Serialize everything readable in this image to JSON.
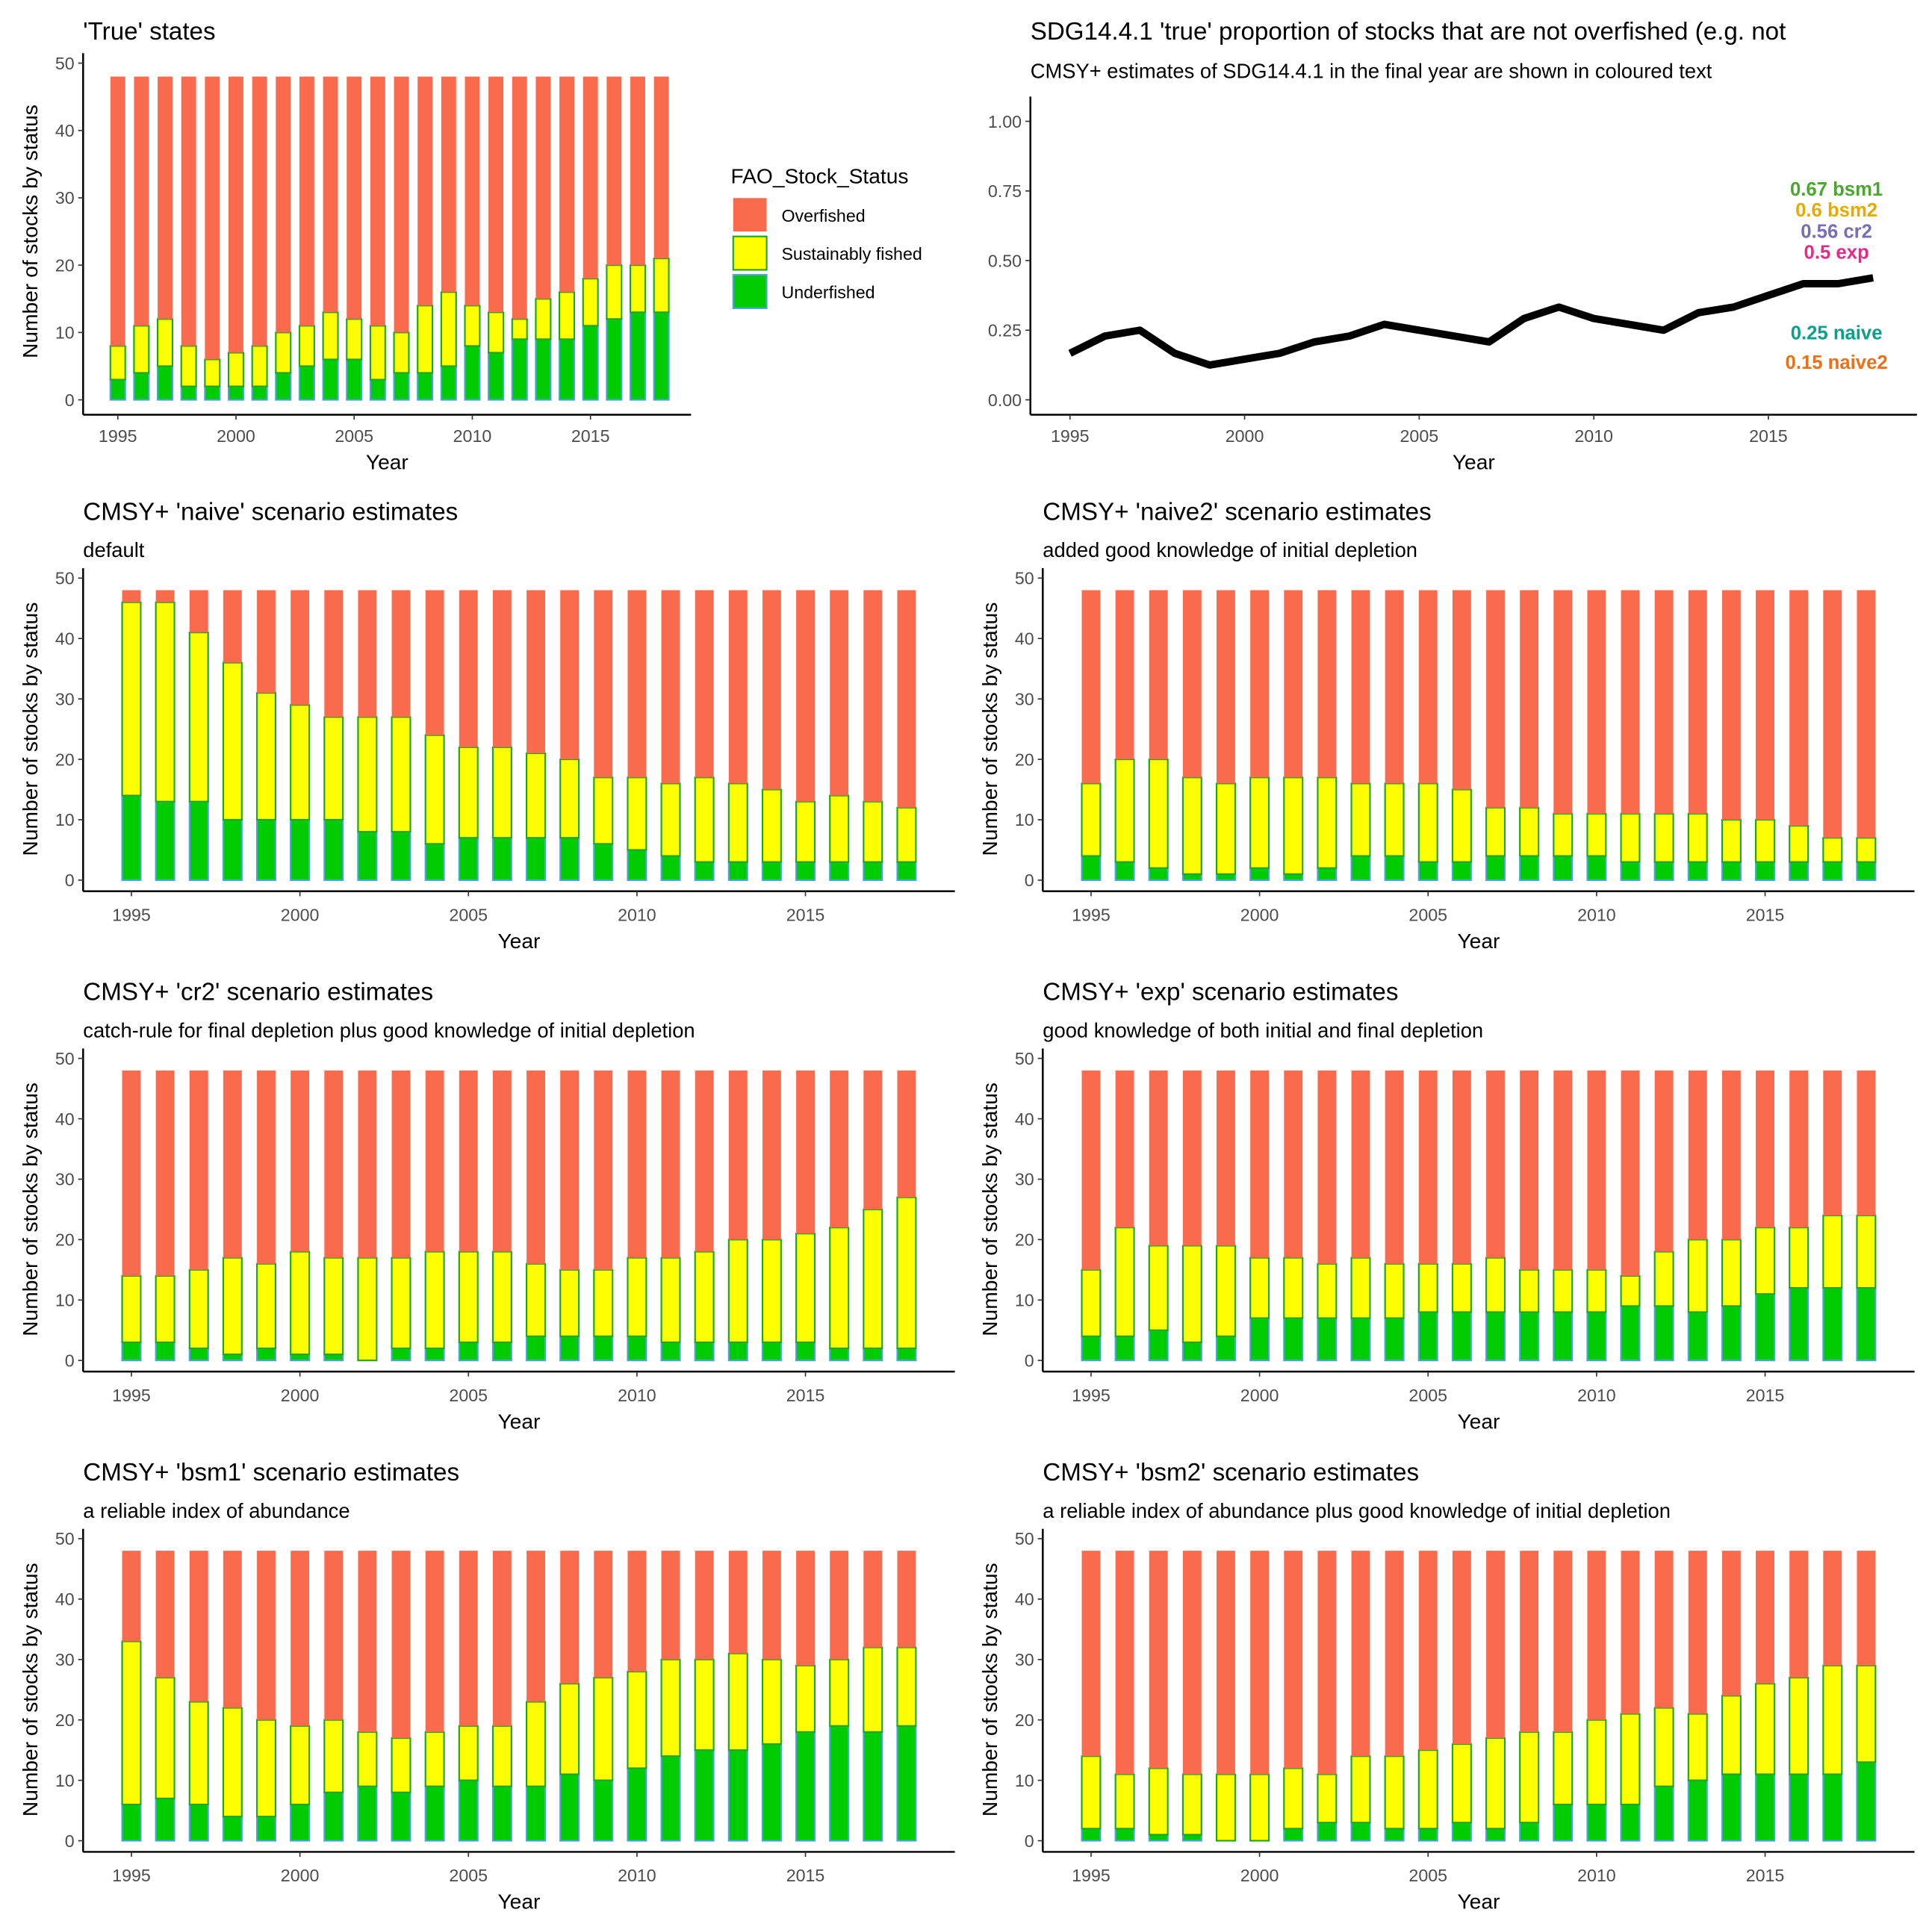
{
  "colors": {
    "Overfished": "#fa6a4d",
    "Sustainably fished": "#ffff00",
    "Underfished": "#00cc00",
    "sust_outline": "#1fa51f",
    "under_outline": "#4ba3e0"
  },
  "legend": {
    "title": "FAO_Stock_Status",
    "items": [
      "Overfished",
      "Sustainably fished",
      "Underfished"
    ]
  },
  "chart_data": [
    {
      "type": "bar",
      "stacked": true,
      "title": "'True' states",
      "subtitle": "",
      "xlabel": "Year",
      "ylabel": "Number of stocks by status",
      "ylim": [
        0,
        50
      ],
      "yticks": [
        "0",
        "10",
        "20",
        "30",
        "40",
        "50"
      ],
      "xticks": [
        "1995",
        "2000",
        "2005",
        "2010",
        "2015"
      ],
      "legend": "right",
      "categories": [
        1995,
        1996,
        1997,
        1998,
        1999,
        2000,
        2001,
        2002,
        2003,
        2004,
        2005,
        2006,
        2007,
        2008,
        2009,
        2010,
        2011,
        2012,
        2013,
        2014,
        2015,
        2016,
        2017,
        2018
      ],
      "series": [
        {
          "name": "Underfished",
          "values": [
            3,
            4,
            5,
            2,
            2,
            2,
            2,
            4,
            5,
            6,
            6,
            3,
            4,
            4,
            5,
            8,
            7,
            9,
            9,
            9,
            11,
            12,
            13,
            13
          ]
        },
        {
          "name": "Sustainably fished",
          "values": [
            5,
            7,
            7,
            6,
            4,
            5,
            6,
            6,
            6,
            7,
            6,
            8,
            6,
            10,
            11,
            6,
            6,
            3,
            6,
            7,
            7,
            8,
            7,
            8
          ]
        },
        {
          "name": "Overfished",
          "values": [
            40,
            37,
            36,
            40,
            42,
            41,
            40,
            38,
            37,
            35,
            36,
            37,
            38,
            34,
            32,
            34,
            35,
            36,
            33,
            32,
            30,
            28,
            28,
            27
          ]
        }
      ]
    },
    {
      "type": "line",
      "title": "SDG14.4.1 'true' proportion of stocks that are not overfished (e.g. not",
      "subtitle": "CMSY+ estimates of SDG14.4.1 in the final year are shown in coloured text",
      "xlabel": "Year",
      "ylabel": "",
      "ylim": [
        0,
        1
      ],
      "yticks": [
        "0.00",
        "0.25",
        "0.50",
        "0.75",
        "1.00"
      ],
      "xticks": [
        "1995",
        "2000",
        "2005",
        "2010",
        "2015"
      ],
      "x": [
        1995,
        1996,
        1997,
        1998,
        1999,
        2000,
        2001,
        2002,
        2003,
        2004,
        2005,
        2006,
        2007,
        2008,
        2009,
        2010,
        2011,
        2012,
        2013,
        2014,
        2015,
        2016,
        2017,
        2018
      ],
      "y": [
        0.167,
        0.229,
        0.25,
        0.167,
        0.125,
        0.146,
        0.167,
        0.208,
        0.229,
        0.271,
        0.25,
        0.229,
        0.208,
        0.292,
        0.333,
        0.292,
        0.271,
        0.25,
        0.313,
        0.333,
        0.375,
        0.417,
        0.417,
        0.438
      ],
      "annotations": [
        {
          "text": "0.67 bsm1",
          "value": 0.67,
          "color": "#4da532"
        },
        {
          "text": "0.6 bsm2",
          "value": 0.6,
          "color": "#e6ab02"
        },
        {
          "text": "0.56 cr2",
          "value": 0.56,
          "color": "#7570b3"
        },
        {
          "text": "0.5 exp",
          "value": 0.5,
          "color": "#e7298a"
        },
        {
          "text": "0.25 naive",
          "value": 0.25,
          "color": "#0aa08a"
        },
        {
          "text": "0.15 naive2",
          "value": 0.15,
          "color": "#e8711a"
        }
      ]
    },
    {
      "type": "bar",
      "stacked": true,
      "title": "CMSY+ 'naive' scenario estimates",
      "subtitle": "default",
      "xlabel": "Year",
      "ylabel": "Number of stocks by status",
      "ylim": [
        0,
        50
      ],
      "yticks": [
        "0",
        "10",
        "20",
        "30",
        "40",
        "50"
      ],
      "xticks": [
        "1995",
        "2000",
        "2005",
        "2010",
        "2015"
      ],
      "categories": [
        1995,
        1996,
        1997,
        1998,
        1999,
        2000,
        2001,
        2002,
        2003,
        2004,
        2005,
        2006,
        2007,
        2008,
        2009,
        2010,
        2011,
        2012,
        2013,
        2014,
        2015,
        2016,
        2017,
        2018
      ],
      "series": [
        {
          "name": "Underfished",
          "values": [
            14,
            13,
            13,
            10,
            10,
            10,
            10,
            8,
            8,
            6,
            7,
            7,
            7,
            7,
            6,
            5,
            4,
            3,
            3,
            3,
            3,
            3,
            3,
            3
          ]
        },
        {
          "name": "Sustainably fished",
          "values": [
            32,
            33,
            28,
            26,
            21,
            19,
            17,
            19,
            19,
            18,
            15,
            15,
            14,
            13,
            11,
            12,
            12,
            14,
            13,
            12,
            10,
            11,
            10,
            9
          ]
        },
        {
          "name": "Overfished",
          "values": [
            2,
            2,
            7,
            12,
            17,
            19,
            21,
            21,
            21,
            24,
            26,
            26,
            27,
            28,
            31,
            31,
            32,
            31,
            32,
            33,
            35,
            34,
            35,
            36
          ]
        }
      ]
    },
    {
      "type": "bar",
      "stacked": true,
      "title": "CMSY+ 'naive2' scenario estimates",
      "subtitle": "added good knowledge of initial depletion",
      "xlabel": "Year",
      "ylabel": "Number of stocks by status",
      "ylim": [
        0,
        50
      ],
      "yticks": [
        "0",
        "10",
        "20",
        "30",
        "40",
        "50"
      ],
      "xticks": [
        "1995",
        "2000",
        "2005",
        "2010",
        "2015"
      ],
      "categories": [
        1995,
        1996,
        1997,
        1998,
        1999,
        2000,
        2001,
        2002,
        2003,
        2004,
        2005,
        2006,
        2007,
        2008,
        2009,
        2010,
        2011,
        2012,
        2013,
        2014,
        2015,
        2016,
        2017,
        2018
      ],
      "series": [
        {
          "name": "Underfished",
          "values": [
            4,
            3,
            2,
            1,
            1,
            2,
            1,
            2,
            4,
            4,
            3,
            3,
            4,
            4,
            4,
            4,
            3,
            3,
            3,
            3,
            3,
            3,
            3,
            3
          ]
        },
        {
          "name": "Sustainably fished",
          "values": [
            12,
            17,
            18,
            16,
            15,
            15,
            16,
            15,
            12,
            12,
            13,
            12,
            8,
            8,
            7,
            7,
            8,
            8,
            8,
            7,
            7,
            6,
            4,
            4
          ]
        },
        {
          "name": "Overfished",
          "values": [
            32,
            28,
            28,
            31,
            32,
            31,
            31,
            31,
            32,
            32,
            32,
            33,
            36,
            36,
            37,
            37,
            37,
            37,
            37,
            38,
            38,
            39,
            41,
            41
          ]
        }
      ]
    },
    {
      "type": "bar",
      "stacked": true,
      "title": "CMSY+ 'cr2' scenario estimates",
      "subtitle": "catch-rule for final depletion plus good knowledge of initial depletion",
      "xlabel": "Year",
      "ylabel": "Number of stocks by status",
      "ylim": [
        0,
        50
      ],
      "yticks": [
        "0",
        "10",
        "20",
        "30",
        "40",
        "50"
      ],
      "xticks": [
        "1995",
        "2000",
        "2005",
        "2010",
        "2015"
      ],
      "categories": [
        1995,
        1996,
        1997,
        1998,
        1999,
        2000,
        2001,
        2002,
        2003,
        2004,
        2005,
        2006,
        2007,
        2008,
        2009,
        2010,
        2011,
        2012,
        2013,
        2014,
        2015,
        2016,
        2017,
        2018
      ],
      "series": [
        {
          "name": "Underfished",
          "values": [
            3,
            3,
            2,
            1,
            2,
            1,
            1,
            0,
            2,
            2,
            3,
            3,
            4,
            4,
            4,
            4,
            3,
            3,
            3,
            3,
            3,
            2,
            2,
            2
          ]
        },
        {
          "name": "Sustainably fished",
          "values": [
            11,
            11,
            13,
            16,
            14,
            17,
            16,
            17,
            15,
            16,
            15,
            15,
            12,
            11,
            11,
            13,
            14,
            15,
            17,
            17,
            18,
            20,
            23,
            25
          ]
        },
        {
          "name": "Overfished",
          "values": [
            34,
            34,
            33,
            31,
            32,
            30,
            31,
            31,
            31,
            30,
            30,
            30,
            32,
            33,
            33,
            31,
            31,
            30,
            28,
            28,
            27,
            26,
            23,
            21
          ]
        }
      ]
    },
    {
      "type": "bar",
      "stacked": true,
      "title": "CMSY+ 'exp' scenario estimates",
      "subtitle": "good knowledge of both initial and final depletion",
      "xlabel": "Year",
      "ylabel": "Number of stocks by status",
      "ylim": [
        0,
        50
      ],
      "yticks": [
        "0",
        "10",
        "20",
        "30",
        "40",
        "50"
      ],
      "xticks": [
        "1995",
        "2000",
        "2005",
        "2010",
        "2015"
      ],
      "categories": [
        1995,
        1996,
        1997,
        1998,
        1999,
        2000,
        2001,
        2002,
        2003,
        2004,
        2005,
        2006,
        2007,
        2008,
        2009,
        2010,
        2011,
        2012,
        2013,
        2014,
        2015,
        2016,
        2017,
        2018
      ],
      "series": [
        {
          "name": "Underfished",
          "values": [
            4,
            4,
            5,
            3,
            4,
            7,
            7,
            7,
            7,
            7,
            8,
            8,
            8,
            8,
            8,
            8,
            9,
            9,
            8,
            9,
            11,
            12,
            12,
            12
          ]
        },
        {
          "name": "Sustainably fished",
          "values": [
            11,
            18,
            14,
            16,
            15,
            10,
            10,
            9,
            10,
            9,
            8,
            8,
            9,
            7,
            7,
            7,
            5,
            9,
            12,
            11,
            11,
            10,
            12,
            12
          ]
        },
        {
          "name": "Overfished",
          "values": [
            33,
            26,
            29,
            29,
            29,
            31,
            31,
            32,
            31,
            32,
            32,
            32,
            31,
            33,
            33,
            33,
            34,
            30,
            28,
            28,
            26,
            26,
            24,
            24
          ]
        }
      ]
    },
    {
      "type": "bar",
      "stacked": true,
      "title": "CMSY+ 'bsm1' scenario estimates",
      "subtitle": "a reliable index of abundance",
      "xlabel": "Year",
      "ylabel": "Number of stocks by status",
      "ylim": [
        0,
        50
      ],
      "yticks": [
        "0",
        "10",
        "20",
        "30",
        "40",
        "50"
      ],
      "xticks": [
        "1995",
        "2000",
        "2005",
        "2010",
        "2015"
      ],
      "categories": [
        1995,
        1996,
        1997,
        1998,
        1999,
        2000,
        2001,
        2002,
        2003,
        2004,
        2005,
        2006,
        2007,
        2008,
        2009,
        2010,
        2011,
        2012,
        2013,
        2014,
        2015,
        2016,
        2017,
        2018
      ],
      "series": [
        {
          "name": "Underfished",
          "values": [
            6,
            7,
            6,
            4,
            4,
            6,
            8,
            9,
            8,
            9,
            10,
            9,
            9,
            11,
            10,
            12,
            14,
            15,
            15,
            16,
            18,
            19,
            18,
            19
          ]
        },
        {
          "name": "Sustainably fished",
          "values": [
            27,
            20,
            17,
            18,
            16,
            13,
            12,
            9,
            9,
            9,
            9,
            10,
            14,
            15,
            17,
            16,
            16,
            15,
            16,
            14,
            11,
            11,
            14,
            13
          ]
        },
        {
          "name": "Overfished",
          "values": [
            15,
            21,
            25,
            26,
            28,
            29,
            28,
            30,
            31,
            30,
            29,
            29,
            25,
            22,
            21,
            20,
            18,
            18,
            17,
            18,
            19,
            18,
            16,
            16
          ]
        }
      ]
    },
    {
      "type": "bar",
      "stacked": true,
      "title": "CMSY+ 'bsm2' scenario estimates",
      "subtitle": "a reliable index of abundance plus good knowledge of initial depletion",
      "xlabel": "Year",
      "ylabel": "Number of stocks by status",
      "ylim": [
        0,
        50
      ],
      "yticks": [
        "0",
        "10",
        "20",
        "30",
        "40",
        "50"
      ],
      "xticks": [
        "1995",
        "2000",
        "2005",
        "2010",
        "2015"
      ],
      "categories": [
        1995,
        1996,
        1997,
        1998,
        1999,
        2000,
        2001,
        2002,
        2003,
        2004,
        2005,
        2006,
        2007,
        2008,
        2009,
        2010,
        2011,
        2012,
        2013,
        2014,
        2015,
        2016,
        2017,
        2018
      ],
      "series": [
        {
          "name": "Underfished",
          "values": [
            2,
            2,
            1,
            1,
            0,
            0,
            2,
            3,
            3,
            2,
            2,
            3,
            2,
            3,
            6,
            6,
            6,
            9,
            10,
            11,
            11,
            11,
            11,
            13
          ]
        },
        {
          "name": "Sustainably fished",
          "values": [
            12,
            9,
            11,
            10,
            11,
            11,
            10,
            8,
            11,
            12,
            13,
            13,
            15,
            15,
            12,
            14,
            15,
            13,
            11,
            13,
            15,
            16,
            18,
            16
          ]
        },
        {
          "name": "Overfished",
          "values": [
            34,
            37,
            36,
            37,
            37,
            37,
            36,
            37,
            34,
            34,
            33,
            32,
            31,
            30,
            30,
            28,
            27,
            26,
            27,
            24,
            22,
            21,
            19,
            19
          ]
        }
      ]
    }
  ]
}
